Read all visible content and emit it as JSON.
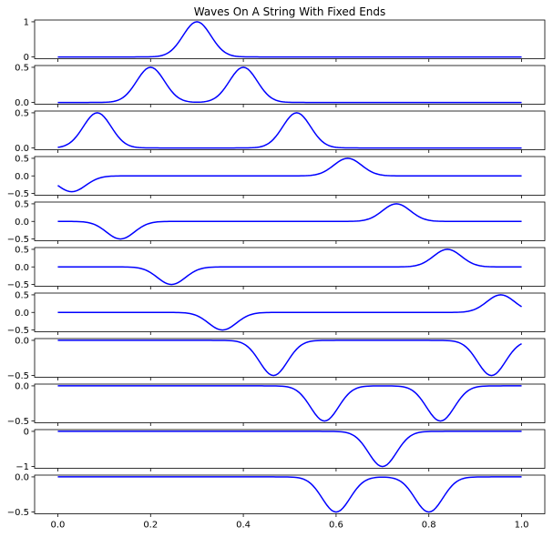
{
  "chart_data": {
    "type": "line",
    "title": "Waves On A String With Fixed Ends",
    "line_color": "#0000ff",
    "xlim": [
      -0.05,
      1.05
    ],
    "xticks": [
      0.0,
      0.2,
      0.4,
      0.6,
      0.8,
      1.0
    ],
    "xtick_labels": [
      "0.0",
      "0.2",
      "0.4",
      "0.6",
      "0.8",
      "1.0"
    ],
    "pulse_sigma": 0.03,
    "panels": [
      {
        "ylim": [
          -0.05,
          1.05
        ],
        "yticks": [
          0,
          1
        ],
        "ytick_labels": [
          "0",
          "1"
        ],
        "pulses": [
          {
            "center": 0.3,
            "amplitude": 1.0
          }
        ]
      },
      {
        "ylim": [
          -0.025,
          0.525
        ],
        "yticks": [
          0.0,
          0.5
        ],
        "ytick_labels": [
          "0.0",
          "0.5"
        ],
        "pulses": [
          {
            "center": 0.2,
            "amplitude": 0.5
          },
          {
            "center": 0.4,
            "amplitude": 0.5
          }
        ]
      },
      {
        "ylim": [
          -0.025,
          0.525
        ],
        "yticks": [
          0.0,
          0.5
        ],
        "ytick_labels": [
          "0.0",
          "0.5"
        ],
        "pulses": [
          {
            "center": 0.085,
            "amplitude": 0.5
          },
          {
            "center": 0.515,
            "amplitude": 0.5
          }
        ]
      },
      {
        "ylim": [
          -0.55,
          0.55
        ],
        "yticks": [
          -0.5,
          0.0,
          0.5
        ],
        "ytick_labels": [
          "−0.5",
          "0.0",
          "0.5"
        ],
        "pulses": [
          {
            "center": 0.625,
            "amplitude": 0.5
          },
          {
            "center": 0.03,
            "amplitude": -0.45
          }
        ]
      },
      {
        "ylim": [
          -0.55,
          0.55
        ],
        "yticks": [
          -0.5,
          0.0,
          0.5
        ],
        "ytick_labels": [
          "−0.5",
          "0.0",
          "0.5"
        ],
        "pulses": [
          {
            "center": 0.73,
            "amplitude": 0.5
          },
          {
            "center": 0.135,
            "amplitude": -0.5
          }
        ]
      },
      {
        "ylim": [
          -0.55,
          0.55
        ],
        "yticks": [
          -0.5,
          0.0,
          0.5
        ],
        "ytick_labels": [
          "−0.5",
          "0.0",
          "0.5"
        ],
        "pulses": [
          {
            "center": 0.84,
            "amplitude": 0.5
          },
          {
            "center": 0.245,
            "amplitude": -0.5
          }
        ]
      },
      {
        "ylim": [
          -0.55,
          0.55
        ],
        "yticks": [
          -0.5,
          0.0,
          0.5
        ],
        "ytick_labels": [
          "−0.5",
          "0.0",
          "0.5"
        ],
        "pulses": [
          {
            "center": 0.955,
            "amplitude": 0.5
          },
          {
            "center": 0.355,
            "amplitude": -0.5
          }
        ]
      },
      {
        "ylim": [
          -0.525,
          0.025
        ],
        "yticks": [
          -0.5,
          0.0
        ],
        "ytick_labels": [
          "−0.5",
          "0.0"
        ],
        "pulses": [
          {
            "center": 0.465,
            "amplitude": -0.5
          },
          {
            "center": 0.935,
            "amplitude": -0.5
          }
        ]
      },
      {
        "ylim": [
          -0.525,
          0.025
        ],
        "yticks": [
          -0.5,
          0.0
        ],
        "ytick_labels": [
          "−0.5",
          "0.0"
        ],
        "pulses": [
          {
            "center": 0.575,
            "amplitude": -0.5
          },
          {
            "center": 0.825,
            "amplitude": -0.5
          }
        ]
      },
      {
        "ylim": [
          -1.05,
          0.05
        ],
        "yticks": [
          -1,
          0
        ],
        "ytick_labels": [
          "−1",
          "0"
        ],
        "pulses": [
          {
            "center": 0.7,
            "amplitude": -1.0
          }
        ]
      },
      {
        "ylim": [
          -0.525,
          0.025
        ],
        "yticks": [
          -0.5,
          0.0
        ],
        "ytick_labels": [
          "−0.5",
          "0.0"
        ],
        "pulses": [
          {
            "center": 0.6,
            "amplitude": -0.5
          },
          {
            "center": 0.8,
            "amplitude": -0.5
          }
        ]
      }
    ]
  }
}
